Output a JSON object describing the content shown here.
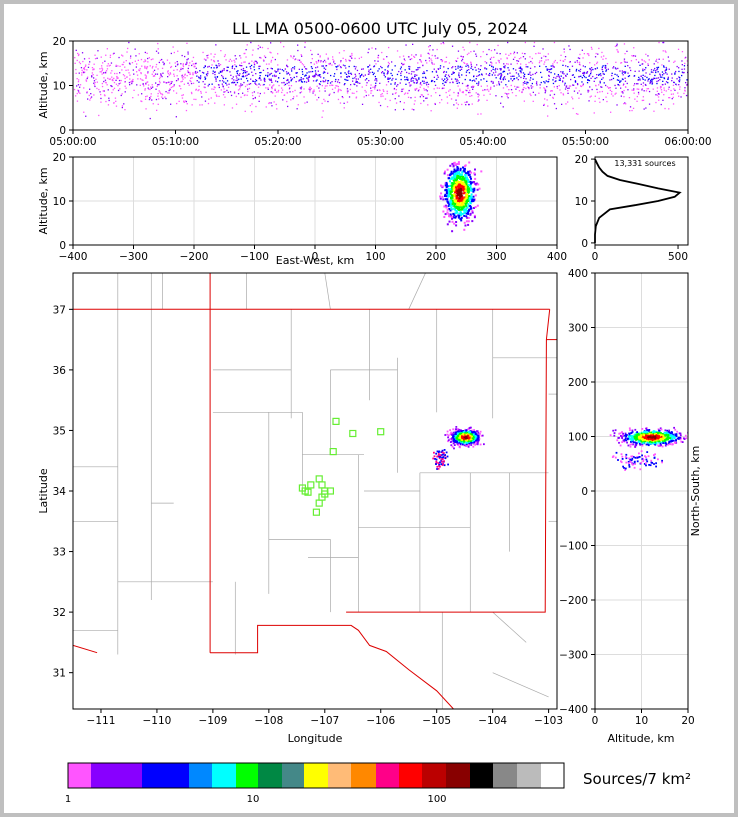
{
  "title": "LL LMA 0500-0600 UTC July 05, 2024",
  "time_height": {
    "ylabel": "Altitude, km",
    "yticks": [
      0,
      10,
      20
    ],
    "xticks": [
      "05:00:00",
      "05:10:00",
      "05:20:00",
      "05:30:00",
      "05:40:00",
      "05:50:00",
      "06:00:00"
    ],
    "ylim": [
      0,
      20
    ]
  },
  "ew_alt": {
    "ylabel": "Altitude, km",
    "xlabel": "East-West, km",
    "xticks": [
      -400,
      -300,
      -200,
      -100,
      0,
      100,
      200,
      300,
      400
    ],
    "yticks": [
      0,
      10,
      20
    ],
    "xlim": [
      -400,
      400
    ],
    "ylim": [
      0,
      20
    ]
  },
  "histogram": {
    "label": "13,331 sources",
    "xticks": [
      0,
      500
    ],
    "yticks": [
      0,
      10,
      20
    ]
  },
  "plan": {
    "xlabel": "Longitude",
    "ylabel": "Latitude",
    "xticks": [
      -111,
      -110,
      -109,
      -108,
      -107,
      -106,
      -105,
      -104,
      -103
    ],
    "yticks": [
      31,
      32,
      33,
      34,
      35,
      36,
      37
    ],
    "xlim": [
      -111.5,
      -102.85
    ],
    "ylim": [
      30.4,
      37.6
    ]
  },
  "ns_alt": {
    "xlabel": "Altitude, km",
    "ylabel": "North-South, km",
    "xticks": [
      0,
      10,
      20
    ],
    "yticks": [
      -400,
      -300,
      -200,
      -100,
      0,
      100,
      200,
      300,
      400
    ],
    "xlim": [
      0,
      20
    ],
    "ylim": [
      -400,
      400
    ]
  },
  "colorbar": {
    "label": "Sources/7 km²",
    "ticks": [
      "1",
      "10",
      "100"
    ],
    "colors": [
      "#ff55ff",
      "#8800ff",
      "#8800ff",
      "#0000ff",
      "#0000ff",
      "#0088ff",
      "#00ffff",
      "#00ff00",
      "#008844",
      "#008844",
      "#448888",
      "#ffff00",
      "#ffbb77",
      "#ff8800",
      "#ff0088",
      "#ff0000",
      "#bb0000",
      "#880000",
      "#000000",
      "#888888",
      "#bbbbbb",
      "#ffffff"
    ]
  },
  "chart_data": {
    "type": "scatter",
    "title": "LL LMA 0500-0600 UTC July 05, 2024",
    "total_sources": 13331,
    "stations": {
      "lon": [
        -107.35,
        -107.25,
        -107.1,
        -107.05,
        -106.9,
        -107.0,
        -107.05,
        -107.1,
        -107.15,
        -107.3,
        -107.4,
        -106.85,
        -106.8,
        -106.5,
        -106.0,
        -107.0
      ],
      "lat": [
        34.0,
        34.1,
        34.2,
        34.1,
        34.0,
        33.95,
        33.9,
        33.8,
        33.65,
        33.98,
        34.05,
        34.65,
        35.15,
        34.95,
        34.98,
        34.0
      ]
    },
    "storm": {
      "lon_center": -104.5,
      "lat_center": 34.9,
      "ew_km_center": 238,
      "ns_km_center": 100,
      "alt_km_center": 12
    },
    "altitude_histogram": {
      "altitude_km": [
        0,
        2,
        4,
        6,
        8,
        9,
        10,
        11,
        12,
        13,
        14,
        15,
        16,
        17,
        18,
        19,
        20
      ],
      "count": [
        0,
        0,
        5,
        25,
        90,
        240,
        380,
        480,
        510,
        380,
        270,
        150,
        75,
        45,
        25,
        12,
        0
      ]
    }
  }
}
